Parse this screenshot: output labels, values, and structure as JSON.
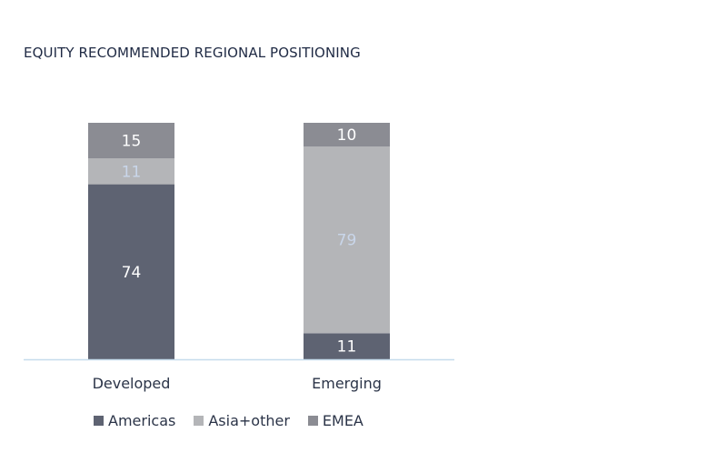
{
  "chart_data": {
    "type": "bar",
    "stacked": true,
    "title": "EQUITY RECOMMENDED REGIONAL POSITIONING",
    "categories": [
      "Developed",
      "Emerging"
    ],
    "series": [
      {
        "name": "Americas",
        "values": [
          74,
          11
        ],
        "color": "#5e6372",
        "label_color": "#ffffff"
      },
      {
        "name": "Asia+other",
        "values": [
          11,
          79
        ],
        "color": "#b4b5b8",
        "label_color": "#c9d6ea"
      },
      {
        "name": "EMEA",
        "values": [
          15,
          10
        ],
        "color": "#8b8c93",
        "label_color": "#ffffff"
      }
    ],
    "ylim": [
      0,
      100
    ],
    "xlabel": "",
    "ylabel": "",
    "grid": false,
    "legend": "bottom-left",
    "axis_color": "#c6dcec"
  }
}
